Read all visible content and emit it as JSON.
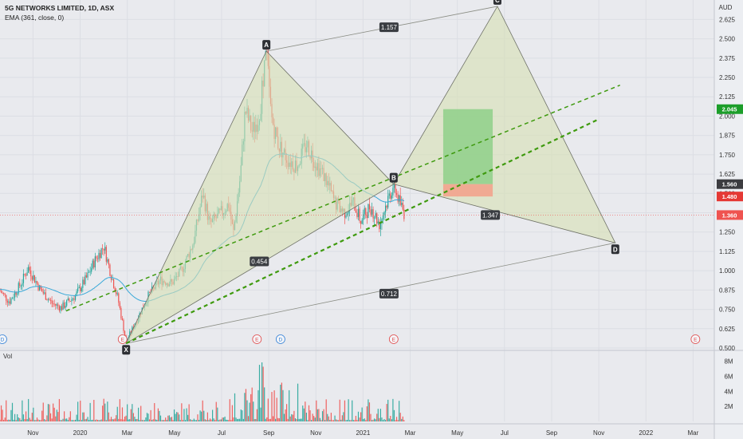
{
  "chart_data": {
    "type": "candlestick",
    "title": "5G NETWORKS LIMITED, 1D, ASX",
    "indicator": "EMA (361, close, 0)",
    "currency": "AUD",
    "volume_label": "Vol",
    "y_ticks": [
      "2.625",
      "2.500",
      "2.375",
      "2.250",
      "2.125",
      "2.000",
      "1.875",
      "1.750",
      "1.625",
      "1.500",
      "1.375",
      "1.250",
      "1.125",
      "1.000",
      "0.875",
      "0.750",
      "0.625",
      "0.500"
    ],
    "y_tick_values": [
      2.625,
      2.5,
      2.375,
      2.25,
      2.125,
      2.0,
      1.875,
      1.75,
      1.625,
      1.5,
      1.375,
      1.25,
      1.125,
      1.0,
      0.875,
      0.75,
      0.625,
      0.5
    ],
    "ylim": [
      0.5,
      2.72
    ],
    "vol_ticks": [
      "8M",
      "6M",
      "4M",
      "2M"
    ],
    "vol_tick_values": [
      8,
      6,
      4,
      2
    ],
    "vol_ylim": [
      0,
      8.6
    ],
    "x_ticks": [
      "Nov",
      "2020",
      "Mar",
      "May",
      "Jul",
      "Sep",
      "Nov",
      "2021",
      "Mar",
      "May",
      "Jul",
      "Sep",
      "Nov",
      "2022",
      "Mar"
    ],
    "x_tick_months": [
      0,
      2,
      4,
      6,
      8,
      10,
      12,
      14,
      16,
      18,
      20,
      22,
      24,
      26,
      28
    ],
    "xlim_months": [
      -1.4,
      28.9
    ],
    "price_tags": [
      {
        "label": "2.045",
        "value": 2.045,
        "color": "#1c9e2a"
      },
      {
        "label": "1.560",
        "value": 1.56,
        "color": "#3c3c40"
      },
      {
        "label": "1.480",
        "value": 1.48,
        "color": "#e53935"
      },
      {
        "label": "1.360",
        "value": 1.36,
        "color": "#ef5350"
      }
    ],
    "current_price": 1.36,
    "harmonic_points": [
      {
        "label": "X",
        "t": 3.95,
        "price": 0.53
      },
      {
        "label": "A",
        "t": 9.9,
        "price": 2.42
      },
      {
        "label": "B",
        "t": 15.3,
        "price": 1.56
      },
      {
        "label": "C",
        "t": 19.7,
        "price": 2.71
      },
      {
        "label": "D",
        "t": 24.7,
        "price": 1.18
      }
    ],
    "ratios": [
      {
        "label": "1.157",
        "t": 15.1,
        "price": 2.575
      },
      {
        "label": "0.454",
        "t": 9.6,
        "price": 1.06
      },
      {
        "label": "1.347",
        "t": 19.4,
        "price": 1.36
      },
      {
        "label": "0.712",
        "t": 15.1,
        "price": 0.852
      }
    ],
    "trendlines": [
      {
        "t1": 1.4,
        "p1": 0.74,
        "t2": 24.9,
        "p2": 2.2,
        "width": 1.5
      },
      {
        "t1": 3.95,
        "p1": 0.53,
        "t2": 24.0,
        "p2": 1.98,
        "width": 2.2
      }
    ],
    "target_box": {
      "t1": 17.4,
      "t2": 19.5,
      "entry": 1.56,
      "stop": 1.48,
      "target": 2.045
    },
    "events": [
      {
        "label": "D",
        "t": -1.3,
        "kind": "dividend"
      },
      {
        "label": "E",
        "t": 3.8,
        "kind": "earnings"
      },
      {
        "label": "E",
        "t": 9.5,
        "kind": "earnings"
      },
      {
        "label": "D",
        "t": 10.5,
        "kind": "dividend"
      },
      {
        "label": "E",
        "t": 15.3,
        "kind": "earnings"
      },
      {
        "label": "E",
        "t": 28.1,
        "kind": "earnings"
      }
    ]
  }
}
